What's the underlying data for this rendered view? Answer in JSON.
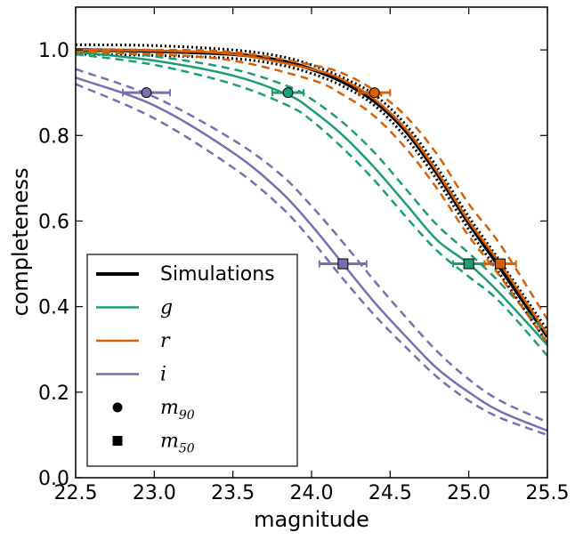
{
  "chart_data": {
    "type": "line",
    "xlabel": "magnitude",
    "ylabel": "completeness",
    "xlim": [
      22.5,
      25.5
    ],
    "ylim": [
      0.0,
      1.1
    ],
    "xticks": [
      "22.5",
      "23.0",
      "23.5",
      "24.0",
      "24.5",
      "25.0",
      "25.5"
    ],
    "yticks": [
      "0.0",
      "0.2",
      "0.4",
      "0.6",
      "0.8",
      "1.0"
    ],
    "grid": false,
    "legend_position": "lower-left",
    "colors": {
      "simulations": "#000000",
      "g": "#1b9e77",
      "r": "#d95f02",
      "i": "#7570b3"
    },
    "legend": [
      {
        "label": "Simulations",
        "kind": "line",
        "color": "#000000"
      },
      {
        "label": "g",
        "kind": "line",
        "color": "#1b9e77"
      },
      {
        "label": "r",
        "kind": "line",
        "color": "#d95f02"
      },
      {
        "label": "i",
        "kind": "line",
        "color": "#7570b3"
      },
      {
        "label": "m",
        "sub": "90",
        "kind": "circle-marker",
        "color": "#000000"
      },
      {
        "label": "m",
        "sub": "50",
        "kind": "square-marker",
        "color": "#000000"
      }
    ],
    "series": [
      {
        "name": "Simulations",
        "color": "#000000",
        "style": "solid",
        "x": [
          22.5,
          23.0,
          23.5,
          23.8,
          24.0,
          24.2,
          24.4,
          24.6,
          24.8,
          25.0,
          25.2,
          25.5
        ],
        "y": [
          1.0,
          0.997,
          0.99,
          0.975,
          0.955,
          0.925,
          0.88,
          0.81,
          0.71,
          0.595,
          0.49,
          0.33
        ]
      },
      {
        "name": "Simulations upper",
        "color": "#000000",
        "style": "dotted",
        "x": [
          22.5,
          23.0,
          23.5,
          23.8,
          24.0,
          24.2,
          24.4,
          24.6,
          24.8,
          25.0,
          25.2,
          25.5
        ],
        "y": [
          1.012,
          1.01,
          1.0,
          0.985,
          0.965,
          0.935,
          0.895,
          0.825,
          0.725,
          0.61,
          0.505,
          0.345
        ]
      },
      {
        "name": "Simulations lower",
        "color": "#000000",
        "style": "dotted",
        "x": [
          22.5,
          23.0,
          23.5,
          23.8,
          24.0,
          24.2,
          24.4,
          24.6,
          24.8,
          25.0,
          25.2,
          25.5
        ],
        "y": [
          0.99,
          0.987,
          0.98,
          0.965,
          0.945,
          0.915,
          0.87,
          0.795,
          0.695,
          0.58,
          0.475,
          0.315
        ]
      },
      {
        "name": "g",
        "color": "#1b9e77",
        "style": "solid",
        "x": [
          22.5,
          23.0,
          23.5,
          23.85,
          24.0,
          24.2,
          24.4,
          24.6,
          24.8,
          25.0,
          25.2,
          25.5
        ],
        "y": [
          0.995,
          0.975,
          0.94,
          0.895,
          0.86,
          0.8,
          0.725,
          0.64,
          0.555,
          0.5,
          0.43,
          0.31
        ]
      },
      {
        "name": "g upper",
        "color": "#1b9e77",
        "style": "dashed",
        "x": [
          22.5,
          23.0,
          23.5,
          23.85,
          24.0,
          24.2,
          24.4,
          24.6,
          24.8,
          25.0,
          25.2,
          25.5
        ],
        "y": [
          1.0,
          0.985,
          0.955,
          0.915,
          0.885,
          0.83,
          0.76,
          0.675,
          0.59,
          0.525,
          0.455,
          0.335
        ]
      },
      {
        "name": "g lower",
        "color": "#1b9e77",
        "style": "dashed",
        "x": [
          22.5,
          23.0,
          23.5,
          23.85,
          24.0,
          24.2,
          24.4,
          24.6,
          24.8,
          25.0,
          25.2,
          25.5
        ],
        "y": [
          0.99,
          0.965,
          0.92,
          0.87,
          0.835,
          0.77,
          0.695,
          0.61,
          0.53,
          0.47,
          0.41,
          0.285
        ]
      },
      {
        "name": "r",
        "color": "#d95f02",
        "style": "solid",
        "x": [
          22.5,
          23.0,
          23.5,
          24.0,
          24.2,
          24.4,
          24.6,
          24.8,
          25.0,
          25.2,
          25.5
        ],
        "y": [
          1.0,
          0.998,
          0.99,
          0.955,
          0.93,
          0.885,
          0.815,
          0.715,
          0.6,
          0.5,
          0.335
        ]
      },
      {
        "name": "r upper",
        "color": "#d95f02",
        "style": "dashed",
        "x": [
          22.5,
          23.0,
          23.5,
          24.0,
          24.2,
          24.4,
          24.6,
          24.8,
          25.0,
          25.2,
          25.5
        ],
        "y": [
          1.0,
          1.0,
          0.995,
          0.965,
          0.945,
          0.905,
          0.845,
          0.755,
          0.64,
          0.545,
          0.37
        ]
      },
      {
        "name": "r lower",
        "color": "#d95f02",
        "style": "dashed",
        "x": [
          22.5,
          23.0,
          23.5,
          24.0,
          24.2,
          24.4,
          24.6,
          24.8,
          25.0,
          25.2,
          25.5
        ],
        "y": [
          0.995,
          0.99,
          0.975,
          0.93,
          0.895,
          0.845,
          0.77,
          0.675,
          0.565,
          0.47,
          0.315
        ]
      },
      {
        "name": "i",
        "color": "#7570b3",
        "style": "solid",
        "x": [
          22.5,
          23.0,
          23.5,
          23.8,
          24.0,
          24.2,
          24.4,
          24.6,
          24.8,
          25.0,
          25.2,
          25.5
        ],
        "y": [
          0.935,
          0.87,
          0.76,
          0.67,
          0.59,
          0.5,
          0.41,
          0.33,
          0.255,
          0.2,
          0.155,
          0.11
        ]
      },
      {
        "name": "i upper",
        "color": "#7570b3",
        "style": "dashed",
        "x": [
          22.5,
          23.0,
          23.5,
          23.8,
          24.0,
          24.2,
          24.4,
          24.6,
          24.8,
          25.0,
          25.2,
          25.5
        ],
        "y": [
          0.955,
          0.89,
          0.79,
          0.71,
          0.635,
          0.55,
          0.46,
          0.375,
          0.295,
          0.23,
          0.18,
          0.13
        ]
      },
      {
        "name": "i lower",
        "color": "#7570b3",
        "style": "dashed",
        "x": [
          22.5,
          23.0,
          23.5,
          23.8,
          24.0,
          24.2,
          24.4,
          24.6,
          24.8,
          25.0,
          25.2,
          25.5
        ],
        "y": [
          0.92,
          0.84,
          0.725,
          0.635,
          0.555,
          0.465,
          0.38,
          0.305,
          0.235,
          0.18,
          0.14,
          0.1
        ]
      }
    ],
    "markers": [
      {
        "band": "g",
        "shape": "circle",
        "color": "#1b9e77",
        "x": 23.85,
        "y": 0.9,
        "xerr": 0.1
      },
      {
        "band": "r",
        "shape": "circle",
        "color": "#d95f02",
        "x": 24.4,
        "y": 0.9,
        "xerr": 0.1
      },
      {
        "band": "i",
        "shape": "circle",
        "color": "#7570b3",
        "x": 22.95,
        "y": 0.9,
        "xerr": 0.15
      },
      {
        "band": "g",
        "shape": "square",
        "color": "#1b9e77",
        "x": 25.0,
        "y": 0.5,
        "xerr": 0.1
      },
      {
        "band": "r",
        "shape": "square",
        "color": "#d95f02",
        "x": 25.2,
        "y": 0.5,
        "xerr": 0.1
      },
      {
        "band": "i",
        "shape": "square",
        "color": "#7570b3",
        "x": 24.2,
        "y": 0.5,
        "xerr": 0.15
      }
    ]
  }
}
